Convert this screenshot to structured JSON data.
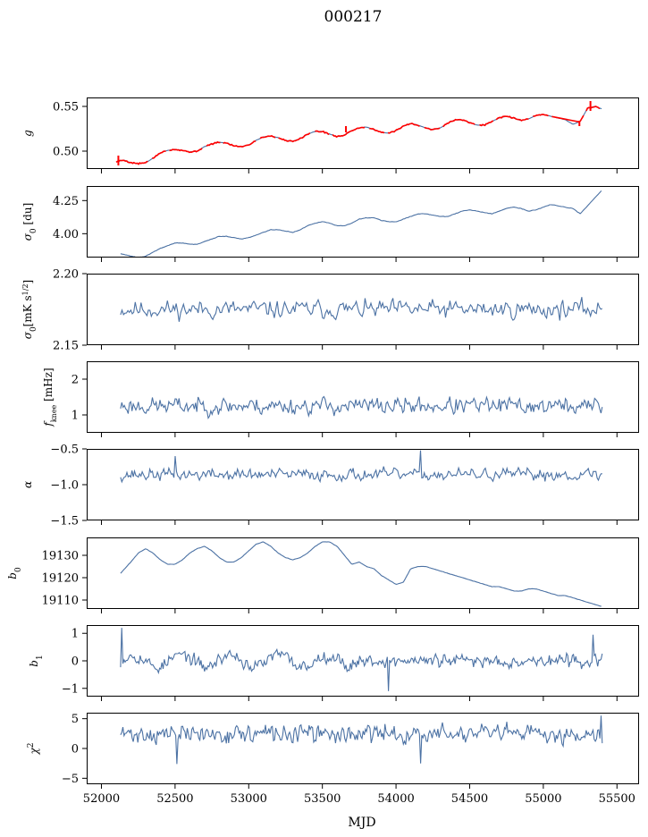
{
  "title": "000217",
  "colors": {
    "series": "#4c72a4",
    "highlight": "#ff0000",
    "axis": "#000000"
  },
  "chart_data": [
    {
      "type": "line",
      "name": "g",
      "ylabel": "g",
      "ylim": [
        0.48,
        0.56
      ],
      "yticks": [
        0.5,
        0.55
      ],
      "ytick_labels": [
        "0.50",
        "0.55"
      ],
      "model": "g",
      "x": [
        52100,
        52150,
        52200,
        52250,
        52300,
        52350,
        52400,
        52450,
        52500,
        52550,
        52600,
        52650,
        52700,
        52750,
        52800,
        52850,
        52900,
        52950,
        53000,
        53050,
        53100,
        53150,
        53200,
        53250,
        53300,
        53350,
        53400,
        53450,
        53500,
        53550,
        53600,
        53650,
        53700,
        53750,
        53800,
        53850,
        53900,
        53950,
        54000,
        54050,
        54100,
        54150,
        54200,
        54250,
        54300,
        54350,
        54400,
        54450,
        54500,
        54550,
        54600,
        54650,
        54700,
        54750,
        54800,
        54850,
        54900,
        54950,
        55000,
        55050,
        55100,
        55150,
        55200,
        55250,
        55300,
        55350,
        55400
      ],
      "y": [
        0.488,
        0.49,
        0.487,
        0.486,
        0.487,
        0.492,
        0.498,
        0.501,
        0.502,
        0.501,
        0.499,
        0.5,
        0.505,
        0.508,
        0.51,
        0.509,
        0.506,
        0.505,
        0.507,
        0.512,
        0.516,
        0.517,
        0.515,
        0.512,
        0.511,
        0.514,
        0.519,
        0.522,
        0.522,
        0.519,
        0.516,
        0.518,
        0.523,
        0.526,
        0.527,
        0.524,
        0.521,
        0.52,
        0.523,
        0.528,
        0.531,
        0.529,
        0.526,
        0.524,
        0.526,
        0.531,
        0.535,
        0.535,
        0.532,
        0.529,
        0.529,
        0.533,
        0.537,
        0.539,
        0.537,
        0.534,
        0.536,
        0.54,
        0.541,
        0.539,
        0.537,
        0.535,
        0.53,
        0.533,
        0.548,
        0.55,
        0.547
      ],
      "highlight_series": "red overlay on g"
    },
    {
      "type": "line",
      "name": "sigma0_du",
      "ylabel": "σ0 [du]",
      "ylim": [
        3.82,
        4.36
      ],
      "yticks": [
        4.0,
        4.25
      ],
      "ytick_labels": [
        "4.00",
        "4.25"
      ],
      "model": "sig",
      "x": [
        52130,
        52200,
        52250,
        52300,
        52350,
        52400,
        52450,
        52500,
        52550,
        52600,
        52650,
        52700,
        52750,
        52800,
        52850,
        52900,
        52950,
        53000,
        53050,
        53100,
        53150,
        53200,
        53250,
        53300,
        53350,
        53400,
        53450,
        53500,
        53550,
        53600,
        53650,
        53700,
        53750,
        53800,
        53850,
        53900,
        53950,
        54000,
        54050,
        54100,
        54150,
        54200,
        54250,
        54300,
        54350,
        54400,
        54450,
        54500,
        54550,
        54600,
        54650,
        54700,
        54750,
        54800,
        54850,
        54900,
        54950,
        55000,
        55050,
        55100,
        55150,
        55200,
        55250,
        55300,
        55350,
        55400
      ],
      "y": [
        3.85,
        3.83,
        3.82,
        3.83,
        3.86,
        3.89,
        3.91,
        3.93,
        3.93,
        3.92,
        3.92,
        3.94,
        3.96,
        3.98,
        3.98,
        3.97,
        3.96,
        3.97,
        3.99,
        4.01,
        4.03,
        4.03,
        4.02,
        4.01,
        4.03,
        4.06,
        4.08,
        4.09,
        4.08,
        4.06,
        4.06,
        4.08,
        4.11,
        4.12,
        4.12,
        4.1,
        4.09,
        4.09,
        4.11,
        4.13,
        4.15,
        4.15,
        4.14,
        4.13,
        4.13,
        4.15,
        4.17,
        4.18,
        4.17,
        4.16,
        4.15,
        4.17,
        4.19,
        4.2,
        4.19,
        4.17,
        4.18,
        4.2,
        4.22,
        4.21,
        4.2,
        4.19,
        4.15,
        4.21,
        4.27,
        4.33
      ]
    },
    {
      "type": "line",
      "name": "sigma0_mK",
      "ylabel": "σ0[mK s^1/2]",
      "ylim": [
        2.15,
        2.2
      ],
      "yticks": [
        2.15,
        2.2
      ],
      "ytick_labels": [
        "2.15",
        "2.20"
      ],
      "model": "noise",
      "x_range": [
        52130,
        55400
      ],
      "n_points": 330,
      "center": 2.175,
      "amplitude": 0.0045,
      "seed": 11
    },
    {
      "type": "line",
      "name": "f_knee",
      "ylabel": "f_knee [mHz]",
      "ylim": [
        0.5,
        2.5
      ],
      "yticks": [
        1,
        2
      ],
      "ytick_labels": [
        "1",
        "2"
      ],
      "model": "noise",
      "x_range": [
        52130,
        55400
      ],
      "n_points": 380,
      "center": 1.25,
      "amplitude": 0.17,
      "seed": 23
    },
    {
      "type": "line",
      "name": "alpha",
      "ylabel": "α",
      "ylim": [
        -1.5,
        -0.5
      ],
      "yticks": [
        -1.5,
        -1.0,
        -0.5
      ],
      "ytick_labels": [
        "−1.5",
        "−1.0",
        "−0.5"
      ],
      "model": "noise",
      "x_range": [
        52130,
        55400
      ],
      "n_points": 380,
      "center": -0.86,
      "amplitude": 0.06,
      "seed": 37,
      "spikes": [
        [
          52500,
          -0.6
        ],
        [
          54170,
          -0.52
        ]
      ]
    },
    {
      "type": "line",
      "name": "b0",
      "ylabel": "b0",
      "ylim": [
        19106,
        19138
      ],
      "yticks": [
        19110,
        19120,
        19130
      ],
      "ytick_labels": [
        "19110",
        "19120",
        "19130"
      ],
      "model": "b0",
      "x": [
        52130,
        52200,
        52250,
        52300,
        52350,
        52400,
        52450,
        52500,
        52550,
        52600,
        52650,
        52700,
        52750,
        52800,
        52850,
        52900,
        52950,
        53000,
        53050,
        53100,
        53150,
        53200,
        53250,
        53300,
        53350,
        53400,
        53450,
        53500,
        53550,
        53600,
        53650,
        53700,
        53750,
        53800,
        53850,
        53900,
        53950,
        54000,
        54050,
        54100,
        54150,
        54200,
        54250,
        54300,
        54350,
        54400,
        54450,
        54500,
        54550,
        54600,
        54650,
        54700,
        54750,
        54800,
        54850,
        54900,
        54950,
        55000,
        55050,
        55100,
        55150,
        55200,
        55250,
        55300,
        55350,
        55400
      ],
      "y": [
        19122,
        19127,
        19131,
        19133,
        19131,
        19128,
        19126,
        19126,
        19128,
        19131,
        19133,
        19134,
        19132,
        19129,
        19127,
        19127,
        19129,
        19132,
        19135,
        19136,
        19134,
        19131,
        19129,
        19128,
        19129,
        19131,
        19134,
        19136,
        19136,
        19134,
        19130,
        19126,
        19127,
        19125,
        19124,
        19121,
        19119,
        19117,
        19118,
        19124,
        19125,
        19125,
        19124,
        19123,
        19122,
        19121,
        19120,
        19119,
        19118,
        19117,
        19116,
        19116,
        19115,
        19114,
        19114,
        19115,
        19115,
        19114,
        19113,
        19112,
        19112,
        19111,
        19110,
        19109,
        19108,
        19107
      ]
    },
    {
      "type": "line",
      "name": "b1",
      "ylabel": "b1",
      "ylim": [
        -1.3,
        1.3
      ],
      "yticks": [
        -1,
        0,
        1
      ],
      "ytick_labels": [
        "−1",
        "0",
        "1"
      ],
      "model": "noise",
      "x_range": [
        52130,
        55400
      ],
      "n_points": 420,
      "center": 0.0,
      "amplitude": 0.17,
      "seed": 53,
      "wave": {
        "amp": 0.22,
        "period": 330,
        "until": 53700
      },
      "spikes": [
        [
          52135,
          1.2
        ],
        [
          53950,
          -1.1
        ],
        [
          55340,
          0.95
        ]
      ]
    },
    {
      "type": "line",
      "name": "chi2",
      "ylabel": "χ2",
      "ylim": [
        -6,
        6
      ],
      "yticks": [
        -5,
        0,
        5
      ],
      "ytick_labels": [
        "−5",
        "0",
        "5"
      ],
      "model": "noise",
      "x_range": [
        52130,
        55400
      ],
      "n_points": 420,
      "center": 2.4,
      "amplitude": 1.1,
      "seed": 71,
      "spikes": [
        [
          52510,
          -2.6
        ],
        [
          54170,
          -2.5
        ],
        [
          55390,
          5.5
        ]
      ]
    }
  ],
  "xaxis": {
    "label": "MJD",
    "xlim": [
      51900,
      55650
    ],
    "ticks": [
      52000,
      52500,
      53000,
      53500,
      54000,
      54500,
      55000,
      55500
    ],
    "tick_labels": [
      "52000",
      "52500",
      "53000",
      "53500",
      "54000",
      "54500",
      "55000",
      "55500"
    ]
  }
}
